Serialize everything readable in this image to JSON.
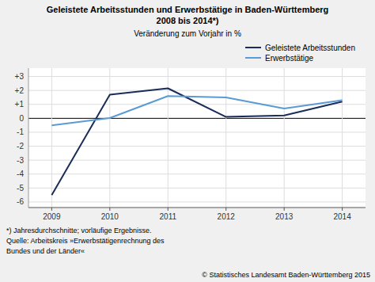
{
  "chart_data": {
    "type": "line",
    "title": [
      "Geleistete Arbeitsstunden und Erwerbstätige in Baden-Württemberg",
      "2008 bis 2014*)"
    ],
    "subtitle": "Veränderung zum Vorjahr in %",
    "x": [
      2009,
      2010,
      2011,
      2012,
      2013,
      2014
    ],
    "series": [
      {
        "name": "Geleistete Arbeitsstunden",
        "color": "#1a2d5a",
        "values": [
          -5.5,
          1.7,
          2.15,
          0.1,
          0.2,
          1.2
        ]
      },
      {
        "name": "Erwerbstätige",
        "color": "#5b9bd5",
        "values": [
          -0.5,
          0.02,
          1.6,
          1.5,
          0.7,
          1.3
        ]
      }
    ],
    "xlim": [
      2008.6,
      2014.4
    ],
    "xticks": [
      2009,
      2010,
      2011,
      2012,
      2013,
      2014
    ],
    "ylim": [
      -6.4,
      3.6
    ],
    "yticks": [
      -6,
      -5,
      -4,
      -3,
      -2,
      -1,
      0,
      {
        "value": 1,
        "label": "+1"
      },
      {
        "value": 2,
        "label": "+2"
      },
      {
        "value": 3,
        "label": "+3"
      }
    ],
    "grid": true,
    "legend": "upper right",
    "annotations": [
      "*) Jahresdurchschnitte; vorläufige Ergebnisse.",
      "Quelle: Arbeitskreis »Erwerbstätigenrechnung des",
      "Bundes und der Länder«",
      "© Statistisches Landesamt Baden-Württemberg 2015"
    ]
  }
}
